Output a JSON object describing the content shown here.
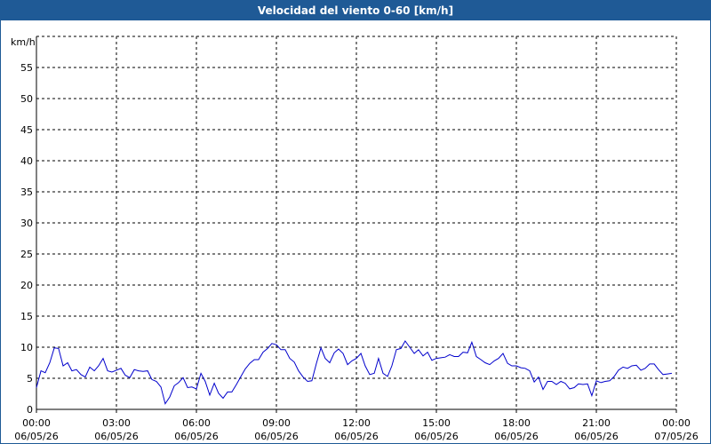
{
  "window": {
    "title": "Velocidad del viento 0-60 [km/h]"
  },
  "colors": {
    "titlebar": "#1f5a96",
    "series": "#0000cc",
    "grid": "#000000"
  },
  "chart_data": {
    "type": "line",
    "title": "Velocidad del viento 0-60 [km/h]",
    "ylabel": "km/h",
    "xlabel": "",
    "ylim": [
      0,
      60
    ],
    "xlim": [
      0,
      24
    ],
    "grid": true,
    "yticks": [
      0,
      5,
      10,
      15,
      20,
      25,
      30,
      35,
      40,
      45,
      50,
      55
    ],
    "xticks": [
      {
        "hour": 0,
        "time": "00:00",
        "date": "06/05/26"
      },
      {
        "hour": 3,
        "time": "03:00",
        "date": "06/05/26"
      },
      {
        "hour": 6,
        "time": "06:00",
        "date": "06/05/26"
      },
      {
        "hour": 9,
        "time": "09:00",
        "date": "06/05/26"
      },
      {
        "hour": 12,
        "time": "12:00",
        "date": "06/05/26"
      },
      {
        "hour": 15,
        "time": "15:00",
        "date": "06/05/26"
      },
      {
        "hour": 18,
        "time": "18:00",
        "date": "06/05/26"
      },
      {
        "hour": 21,
        "time": "21:00",
        "date": "06/05/26"
      },
      {
        "hour": 24,
        "time": "00:00",
        "date": "07/05/26"
      }
    ],
    "series": [
      {
        "x": [
          0.0,
          0.17,
          0.33,
          0.5,
          0.67,
          0.83,
          1.0,
          1.17,
          1.33,
          1.5,
          1.67,
          1.83,
          2.0,
          2.17,
          2.33,
          2.5,
          2.67,
          2.83,
          3.0,
          3.17,
          3.33,
          3.5,
          3.67,
          3.83,
          4.0,
          4.17,
          4.33,
          4.5,
          4.67,
          4.83,
          5.0,
          5.17,
          5.33,
          5.5,
          5.67,
          5.83,
          6.0,
          6.17,
          6.33,
          6.5,
          6.67,
          6.83,
          7.0,
          7.17,
          7.33,
          7.5,
          7.67,
          7.83,
          8.0,
          8.17,
          8.33,
          8.5,
          8.67,
          8.83,
          9.0,
          9.17,
          9.33,
          9.5,
          9.67,
          9.83,
          10.0,
          10.17,
          10.33,
          10.5,
          10.67,
          10.83,
          11.0,
          11.17,
          11.33,
          11.5,
          11.67,
          11.83,
          12.0,
          12.17,
          12.33,
          12.5,
          12.67,
          12.83,
          13.0,
          13.17,
          13.33,
          13.5,
          13.67,
          13.83,
          14.0,
          14.17,
          14.33,
          14.5,
          14.67,
          14.83,
          15.0,
          15.17,
          15.33,
          15.5,
          15.67,
          15.83,
          16.0,
          16.17,
          16.33,
          16.5,
          16.67,
          16.83,
          17.0,
          17.17,
          17.33,
          17.5,
          17.67,
          17.83,
          18.0,
          18.17,
          18.33,
          18.5,
          18.67,
          18.83,
          19.0,
          19.17,
          19.33,
          19.5,
          19.67,
          19.83,
          20.0,
          20.17,
          20.33,
          20.5,
          20.67,
          20.83,
          21.0,
          21.17,
          21.33,
          21.5,
          21.67,
          21.83,
          22.0,
          22.17,
          22.33,
          22.5,
          22.67,
          22.83,
          23.0,
          23.17,
          23.33,
          23.5,
          23.67,
          23.83
        ],
        "values": [
          3.5,
          6.2,
          5.9,
          7.5,
          9.9,
          9.8,
          7.0,
          7.5,
          6.2,
          6.4,
          5.6,
          5.2,
          6.8,
          6.2,
          7.0,
          8.2,
          6.2,
          6.0,
          6.3,
          6.6,
          5.5,
          5.1,
          6.4,
          6.2,
          6.1,
          6.2,
          4.8,
          4.5,
          3.6,
          0.9,
          2.0,
          3.8,
          4.3,
          5.1,
          3.5,
          3.6,
          3.3,
          5.8,
          4.5,
          2.3,
          4.2,
          2.6,
          1.8,
          2.8,
          2.8,
          4.0,
          5.3,
          6.5,
          7.4,
          8.0,
          8.0,
          9.2,
          9.8,
          10.6,
          10.4,
          9.6,
          9.6,
          8.2,
          7.6,
          6.2,
          5.2,
          4.5,
          4.6,
          7.4,
          9.9,
          8.2,
          7.5,
          9.1,
          9.7,
          9.0,
          7.2,
          7.8,
          8.2,
          9.0,
          7.0,
          5.6,
          5.8,
          8.2,
          5.8,
          5.3,
          7.0,
          9.6,
          9.8,
          11.0,
          10.0,
          9.0,
          9.6,
          8.6,
          9.2,
          7.9,
          8.2,
          8.3,
          8.4,
          8.8,
          8.5,
          8.5,
          9.2,
          9.1,
          10.8,
          8.5,
          8.0,
          7.5,
          7.2,
          7.8,
          8.2,
          9.0,
          7.4,
          7.0,
          7.0,
          6.7,
          6.6,
          6.2,
          4.4,
          5.2,
          3.2,
          4.5,
          4.5,
          4.0,
          4.5,
          4.2,
          3.3,
          3.5,
          4.1,
          4.0,
          4.1,
          2.2,
          4.6,
          4.3,
          4.5,
          4.6,
          5.3,
          6.3,
          6.8,
          6.6,
          7.0,
          7.1,
          6.3,
          6.6,
          7.3,
          7.3,
          6.4,
          5.6,
          5.7,
          5.8
        ]
      }
    ]
  }
}
